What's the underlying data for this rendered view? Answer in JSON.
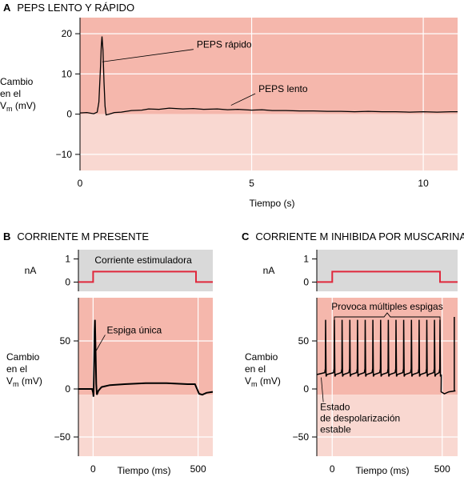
{
  "colors": {
    "upper_region": "#f5b7ac",
    "lower_region": "#f9d8d1",
    "current_panel": "#d9d9d9",
    "gridline": "#ffffff",
    "trace": "#000000",
    "stimulus": "#e0283c"
  },
  "chart_data": [
    {
      "id": "A",
      "type": "line",
      "letter": "A",
      "title": "PEPS LENTO Y RÁPIDO",
      "xlabel": "Tiempo (s)",
      "ylabel": [
        "Cambio",
        "en el",
        "V",
        "m",
        " (mV)"
      ],
      "xlim": [
        0,
        11
      ],
      "ylim": [
        -14,
        24
      ],
      "xticks": [
        0,
        5,
        10
      ],
      "yticks": [
        20,
        10,
        0,
        -10
      ],
      "grid_x": [
        5,
        10
      ],
      "grid_y": [
        20,
        10,
        -10
      ],
      "shade_split_y": 0,
      "annotations": [
        {
          "text": "PEPS rápido",
          "x": 3.4,
          "y": 16.5,
          "pointer_to": [
            0.65,
            13
          ]
        },
        {
          "text": "PEPS lento",
          "x": 5.2,
          "y": 5.5,
          "pointer_to": [
            4.4,
            2.2
          ]
        }
      ],
      "series": [
        {
          "points": [
            [
              0,
              0.3
            ],
            [
              0.2,
              0.4
            ],
            [
              0.4,
              0.1
            ],
            [
              0.5,
              0.5
            ],
            [
              0.55,
              3
            ],
            [
              0.6,
              12
            ],
            [
              0.62,
              17
            ],
            [
              0.64,
              19.3
            ],
            [
              0.67,
              16
            ],
            [
              0.7,
              8
            ],
            [
              0.73,
              2
            ],
            [
              0.76,
              -0.2
            ],
            [
              0.85,
              0
            ],
            [
              1.0,
              0.4
            ],
            [
              1.2,
              0.5
            ],
            [
              1.5,
              0.9
            ],
            [
              1.8,
              1.0
            ],
            [
              2.0,
              1.3
            ],
            [
              2.3,
              1.2
            ],
            [
              2.6,
              1.5
            ],
            [
              3.0,
              1.3
            ],
            [
              3.3,
              1.4
            ],
            [
              3.6,
              1.2
            ],
            [
              4.0,
              1.3
            ],
            [
              4.3,
              1.1
            ],
            [
              4.6,
              1.2
            ],
            [
              5.0,
              1.0
            ],
            [
              5.3,
              1.1
            ],
            [
              5.6,
              0.9
            ],
            [
              6.0,
              0.9
            ],
            [
              6.4,
              0.8
            ],
            [
              6.8,
              0.8
            ],
            [
              7.2,
              0.7
            ],
            [
              7.6,
              0.7
            ],
            [
              8.0,
              0.6
            ],
            [
              8.4,
              0.7
            ],
            [
              8.8,
              0.6
            ],
            [
              9.2,
              0.6
            ],
            [
              9.6,
              0.5
            ],
            [
              10.0,
              0.6
            ],
            [
              10.4,
              0.5
            ],
            [
              10.8,
              0.6
            ],
            [
              11.0,
              0.6
            ]
          ]
        }
      ]
    },
    {
      "id": "B",
      "type": "line",
      "letter": "B",
      "title": "CORRIENTE M PRESENTE",
      "xlabel": "Tiempo (ms)",
      "ylabel": [
        "Cambio",
        "en el",
        "V",
        "m",
        " (mV)"
      ],
      "xlim": [
        -70,
        570
      ],
      "ylim": [
        -70,
        95
      ],
      "xticks": [
        0,
        500
      ],
      "yticks": [
        50,
        0,
        -50
      ],
      "grid_x": [
        0,
        500
      ],
      "grid_y": [
        50,
        -50
      ],
      "shade_split_y": -6,
      "current": {
        "ylabel": "nA",
        "yticks": [
          1,
          0
        ],
        "ylim": [
          -0.4,
          1.4
        ],
        "label": "Corriente estimuladora",
        "step": [
          [
            -70,
            0
          ],
          [
            0,
            0
          ],
          [
            0,
            0.45
          ],
          [
            490,
            0.45
          ],
          [
            490,
            0
          ],
          [
            570,
            0
          ]
        ]
      },
      "annotations": [
        {
          "text": "Espiga única",
          "x": 65,
          "y": 58,
          "pointer_to": [
            15,
            40
          ]
        }
      ],
      "series": [
        {
          "points": [
            [
              -70,
              0
            ],
            [
              -20,
              0
            ],
            [
              -5,
              0
            ],
            [
              0,
              -4
            ],
            [
              2,
              -8
            ],
            [
              5,
              30
            ],
            [
              7,
              60
            ],
            [
              9,
              72
            ],
            [
              12,
              40
            ],
            [
              15,
              5
            ],
            [
              18,
              -6
            ],
            [
              25,
              -2
            ],
            [
              40,
              2
            ],
            [
              80,
              4
            ],
            [
              150,
              5
            ],
            [
              250,
              6
            ],
            [
              350,
              6
            ],
            [
              450,
              5
            ],
            [
              485,
              5
            ],
            [
              495,
              0
            ],
            [
              505,
              -5
            ],
            [
              520,
              -6
            ],
            [
              540,
              -4
            ],
            [
              570,
              -3
            ]
          ]
        }
      ]
    },
    {
      "id": "C",
      "type": "line",
      "letter": "C",
      "title": "CORRIENTE M INHIBIDA POR MUSCARINA",
      "xlabel": "Tiempo (ms)",
      "ylabel": [
        "Cambio",
        "en el",
        "V",
        "m",
        " (mV)"
      ],
      "xlim": [
        -70,
        570
      ],
      "ylim": [
        -70,
        95
      ],
      "xticks": [
        0,
        500
      ],
      "yticks": [
        50,
        0,
        -50
      ],
      "grid_x": [
        0,
        500
      ],
      "grid_y": [
        50,
        -50
      ],
      "shade_split_y": -6,
      "current": {
        "ylabel": "nA",
        "yticks": [
          1,
          0
        ],
        "ylim": [
          -0.4,
          1.4
        ],
        "label": "",
        "step": [
          [
            -70,
            0
          ],
          [
            0,
            0
          ],
          [
            0,
            0.45
          ],
          [
            490,
            0.45
          ],
          [
            490,
            0
          ],
          [
            570,
            0
          ]
        ]
      },
      "bracket": {
        "text": "Provoca múltiples espigas",
        "x0": 10,
        "x1": 490,
        "y": 75
      },
      "annotations": [
        {
          "lines": [
            "Estado",
            "de despolarización",
            "estable"
          ],
          "x": -55,
          "y": -22,
          "pointer_to": [
            -50,
            12
          ]
        }
      ],
      "spike_times": [
        -30,
        10,
        45,
        80,
        115,
        150,
        185,
        220,
        255,
        290,
        325,
        360,
        395,
        430,
        465,
        490
      ],
      "series": [
        {
          "baseline_before": 15,
          "baseline_during": 15,
          "spike_peak": 72,
          "after": [
            [
              495,
              -3
            ],
            [
              510,
              -5
            ],
            [
              530,
              -3
            ],
            [
              560,
              -2
            ]
          ]
        }
      ]
    }
  ]
}
